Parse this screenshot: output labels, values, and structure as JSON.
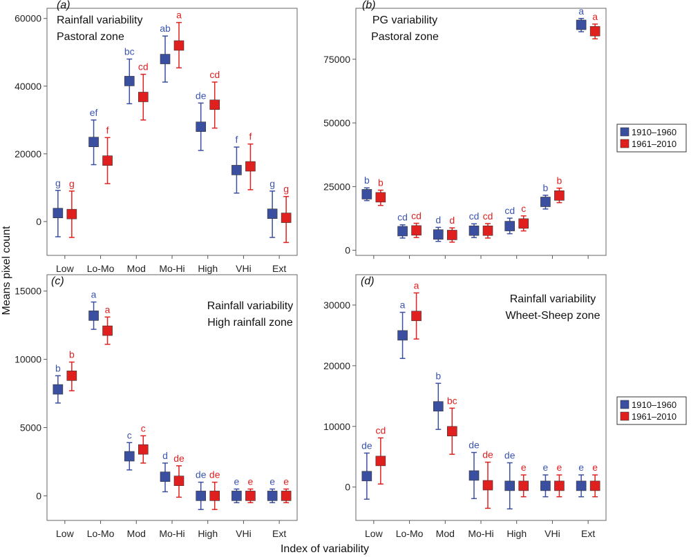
{
  "figure": {
    "ylabel": "Means pixel count",
    "xlabel": "Index of variability"
  },
  "legend": [
    {
      "label": "1910–1960",
      "color": "#3a4fa0"
    },
    {
      "label": "1961–2010",
      "color": "#e0201e"
    }
  ],
  "colors": {
    "series1": "#3a4fa0",
    "series2": "#e0201e",
    "label1": "#3b54b0",
    "label2": "#e02020"
  },
  "chart_data": [
    {
      "type": "scatter",
      "panel_label": "(a)",
      "title": [
        "Rainfall variability",
        "Pastoral zone"
      ],
      "categories": [
        "Low",
        "Lo-Mo",
        "Mod",
        "Mo-Hi",
        "High",
        "VHi",
        "Ext"
      ],
      "yticks": [
        0,
        20000,
        40000,
        60000
      ],
      "ylim": [
        -10000,
        63000
      ],
      "series": [
        {
          "name": "1910–1960",
          "values": [
            2500,
            23500,
            41500,
            48000,
            28000,
            15200,
            2300
          ],
          "low": [
            -4500,
            16800,
            34800,
            41200,
            21000,
            8400,
            -4700
          ],
          "high": [
            9200,
            30000,
            48000,
            54800,
            35000,
            22000,
            9000
          ],
          "labels": [
            "g",
            "ef",
            "bc",
            "ab",
            "de",
            "f",
            "g"
          ]
        },
        {
          "name": "1961–2010",
          "values": [
            2200,
            18000,
            36800,
            52000,
            34500,
            16300,
            1100
          ],
          "low": [
            -4700,
            11200,
            30000,
            45400,
            27600,
            9400,
            -6200
          ],
          "high": [
            9000,
            24800,
            43500,
            58800,
            41200,
            22900,
            7400
          ],
          "labels": [
            "g",
            "f",
            "cd",
            "a",
            "cd",
            "f",
            "g"
          ]
        }
      ]
    },
    {
      "type": "scatter",
      "panel_label": "(b)",
      "title": [
        "PG variability",
        "Pastoral zone"
      ],
      "categories": [],
      "yticks": [
        0,
        25000,
        50000,
        75000
      ],
      "ylim": [
        -2000,
        95000
      ],
      "series": [
        {
          "name": "1910–1960",
          "values": [
            22000,
            7500,
            6200,
            7700,
            9500,
            19000,
            88500
          ],
          "low": [
            19500,
            4800,
            3500,
            5000,
            6500,
            16200,
            85800
          ],
          "high": [
            24500,
            10000,
            9000,
            10400,
            12600,
            21600,
            91000
          ],
          "labels": [
            "b",
            "cd",
            "d",
            "cd",
            "cd",
            "b",
            "a"
          ]
        },
        {
          "name": "1961–2010",
          "values": [
            20800,
            7800,
            6000,
            7700,
            10500,
            21500,
            86000
          ],
          "low": [
            17600,
            5000,
            3200,
            4800,
            7600,
            18700,
            83000
          ],
          "high": [
            23600,
            10600,
            8800,
            10500,
            13500,
            24400,
            88800
          ],
          "labels": [
            "b",
            "cd",
            "d",
            "cd",
            "c",
            "b",
            "a"
          ]
        }
      ]
    },
    {
      "type": "scatter",
      "panel_label": "(c)",
      "title": [
        "Rainfall variability",
        "High rainfall zone"
      ],
      "categories": [
        "Low",
        "Lo-Mo",
        "Mod",
        "Mo-Hi",
        "High",
        "VHi",
        "Ext"
      ],
      "yticks": [
        0,
        5000,
        10000,
        15000
      ],
      "ylim": [
        -1800,
        16200
      ],
      "series": [
        {
          "name": "1910–1960",
          "values": [
            7800,
            13200,
            2900,
            1400,
            0,
            0,
            0
          ],
          "low": [
            6800,
            12200,
            1900,
            300,
            -1000,
            -500,
            -500
          ],
          "high": [
            8800,
            14200,
            3900,
            2400,
            1000,
            500,
            500
          ],
          "labels": [
            "b",
            "a",
            "c",
            "d",
            "de",
            "e",
            "e"
          ]
        },
        {
          "name": "1961–2010",
          "values": [
            8800,
            12100,
            3400,
            1100,
            0,
            0,
            0
          ],
          "low": [
            7700,
            11100,
            2400,
            -100,
            -1000,
            -500,
            -500
          ],
          "high": [
            9800,
            13100,
            4400,
            2200,
            1000,
            500,
            500
          ],
          "labels": [
            "b",
            "a",
            "c",
            "de",
            "de",
            "e",
            "e"
          ]
        }
      ]
    },
    {
      "type": "scatter",
      "panel_label": "(d)",
      "title": [
        "Rainfall variability",
        "Wheet-Sheep zone"
      ],
      "categories": [
        "Low",
        "Lo-Mo",
        "Mod",
        "Mo-Hi",
        "High",
        "VHi",
        "Ext"
      ],
      "yticks": [
        0,
        10000,
        20000,
        30000
      ],
      "ylim": [
        -5500,
        35000
      ],
      "series": [
        {
          "name": "1910–1960",
          "values": [
            1800,
            25000,
            13300,
            1900,
            200,
            200,
            200
          ],
          "low": [
            -2000,
            21200,
            9500,
            -1900,
            -3600,
            -1600,
            -1600
          ],
          "high": [
            5600,
            28800,
            17100,
            5700,
            4000,
            2000,
            2000
          ],
          "labels": [
            "de",
            "a",
            "b",
            "de",
            "de",
            "e",
            "e"
          ]
        },
        {
          "name": "1961–2010",
          "values": [
            4300,
            28200,
            9200,
            300,
            200,
            200,
            200
          ],
          "low": [
            500,
            24400,
            5400,
            -3500,
            -1600,
            -1600,
            -1600
          ],
          "high": [
            8100,
            32000,
            13000,
            4100,
            2000,
            2000,
            2000
          ],
          "labels": [
            "cd",
            "a",
            "bc",
            "de",
            "e",
            "e",
            "e"
          ]
        }
      ]
    }
  ]
}
